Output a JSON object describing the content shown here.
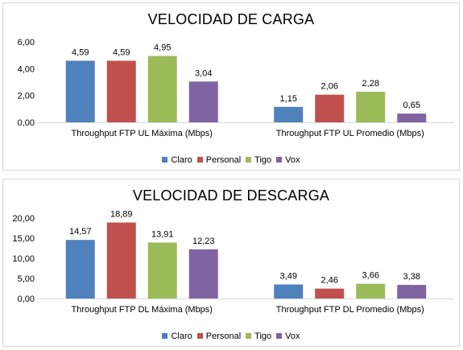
{
  "colors": {
    "Claro": "#4f81bd",
    "Personal": "#c0504d",
    "Tigo": "#9bbb59",
    "Vox": "#8064a2"
  },
  "chart_data": [
    {
      "type": "bar",
      "title": "VELOCIDAD DE CARGA",
      "categories": [
        "Throughput FTP UL Máxima (Mbps)",
        "Throughput FTP UL Promedio (Mbps)"
      ],
      "series": [
        {
          "name": "Claro",
          "values": [
            4.59,
            1.15
          ],
          "labels": [
            "4,59",
            "1,15"
          ]
        },
        {
          "name": "Personal",
          "values": [
            4.59,
            2.06
          ],
          "labels": [
            "4,59",
            "2,06"
          ]
        },
        {
          "name": "Tigo",
          "values": [
            4.95,
            2.28
          ],
          "labels": [
            "4,95",
            "2,28"
          ]
        },
        {
          "name": "Vox",
          "values": [
            3.04,
            0.65
          ],
          "labels": [
            "3,04",
            "0,65"
          ]
        }
      ],
      "yticks": [
        "0,00",
        "2,00",
        "4,00",
        "6,00"
      ],
      "ylim": [
        0,
        6
      ],
      "legend": "bottom"
    },
    {
      "type": "bar",
      "title": "VELOCIDAD DE DESCARGA",
      "categories": [
        "Throughput FTP DL Máxima (Mbps)",
        "Throughput FTP DL Promedio (Mbps)"
      ],
      "series": [
        {
          "name": "Claro",
          "values": [
            14.57,
            3.49
          ],
          "labels": [
            "14,57",
            "3,49"
          ]
        },
        {
          "name": "Personal",
          "values": [
            18.89,
            2.46
          ],
          "labels": [
            "18,89",
            "2,46"
          ]
        },
        {
          "name": "Tigo",
          "values": [
            13.91,
            3.66
          ],
          "labels": [
            "13,91",
            "3,66"
          ]
        },
        {
          "name": "Vox",
          "values": [
            12.23,
            3.38
          ],
          "labels": [
            "12,23",
            "3,38"
          ]
        }
      ],
      "yticks": [
        "0,00",
        "5,00",
        "10,00",
        "15,00",
        "20,00"
      ],
      "ylim": [
        0,
        20
      ],
      "legend": "bottom"
    }
  ]
}
